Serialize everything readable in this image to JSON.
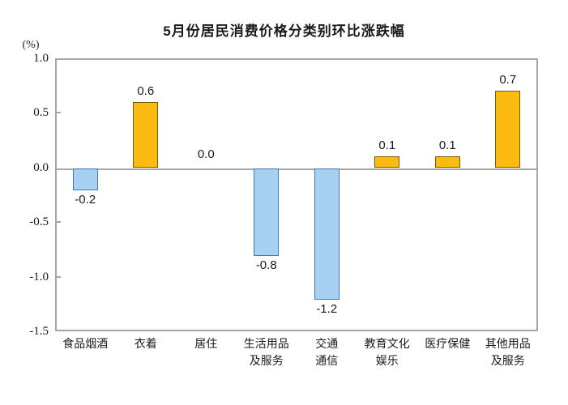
{
  "chart_data": {
    "type": "bar",
    "title": "5月份居民消费价格分类别环比涨跌幅",
    "unit_label": "(%)",
    "categories": [
      "食品烟酒",
      "衣着",
      "居住",
      "生活用品\n及服务",
      "交通\n通信",
      "教育文化\n娱乐",
      "医疗保健",
      "其他用品\n及服务"
    ],
    "values": [
      -0.2,
      0.6,
      0.0,
      -0.8,
      -1.2,
      0.1,
      0.1,
      0.7
    ],
    "value_labels": [
      "-0.2",
      "0.6",
      "0.0",
      "-0.8",
      "-1.2",
      "0.1",
      "0.1",
      "0.7"
    ],
    "xlabel": "",
    "ylabel": "(%)",
    "ylim": [
      -1.5,
      1.0
    ],
    "ytick_interval": 0.5,
    "yticks": [
      "1.0",
      "0.5",
      "0.0",
      "-0.5",
      "-1.0",
      "-1.5"
    ],
    "grid": "off",
    "legend": "none",
    "colors": {
      "positive_fill": "#fcbb13",
      "positive_border": "#7a5c00",
      "negative_fill": "#a7d1f3",
      "negative_border": "#4477aa",
      "axis": "#a6a6a6",
      "text": "#1a1a1a"
    }
  }
}
